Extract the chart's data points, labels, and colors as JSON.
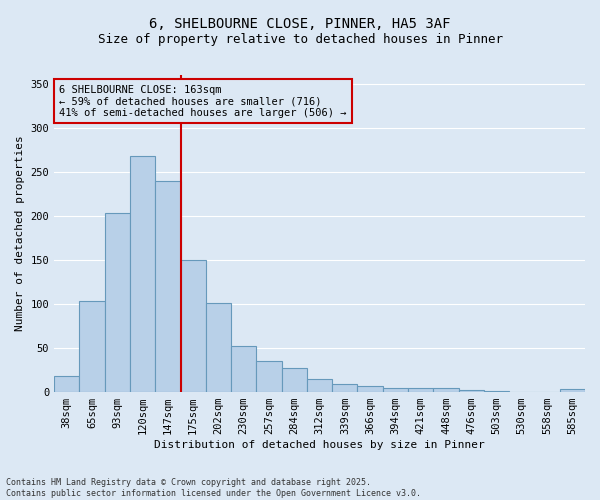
{
  "title_line1": "6, SHELBOURNE CLOSE, PINNER, HA5 3AF",
  "title_line2": "Size of property relative to detached houses in Pinner",
  "xlabel": "Distribution of detached houses by size in Pinner",
  "ylabel": "Number of detached properties",
  "categories": [
    "38sqm",
    "65sqm",
    "93sqm",
    "120sqm",
    "147sqm",
    "175sqm",
    "202sqm",
    "230sqm",
    "257sqm",
    "284sqm",
    "312sqm",
    "339sqm",
    "366sqm",
    "394sqm",
    "421sqm",
    "448sqm",
    "476sqm",
    "503sqm",
    "530sqm",
    "558sqm",
    "585sqm"
  ],
  "values": [
    18,
    103,
    203,
    268,
    240,
    150,
    101,
    52,
    35,
    27,
    15,
    9,
    7,
    5,
    5,
    5,
    2,
    1,
    0,
    0,
    3
  ],
  "bar_color": "#b8d0e8",
  "bar_edge_color": "#6699bb",
  "background_color": "#dce8f4",
  "grid_color": "#ffffff",
  "red_line_x": 4.5,
  "annotation_text": "6 SHELBOURNE CLOSE: 163sqm\n← 59% of detached houses are smaller (716)\n41% of semi-detached houses are larger (506) →",
  "annotation_box_color": "#cc0000",
  "ylim": [
    0,
    360
  ],
  "yticks": [
    0,
    50,
    100,
    150,
    200,
    250,
    300,
    350
  ],
  "footnote": "Contains HM Land Registry data © Crown copyright and database right 2025.\nContains public sector information licensed under the Open Government Licence v3.0.",
  "title_fontsize": 10,
  "subtitle_fontsize": 9,
  "axis_fontsize": 8,
  "tick_fontsize": 7.5,
  "annot_fontsize": 7.5,
  "footnote_fontsize": 6
}
